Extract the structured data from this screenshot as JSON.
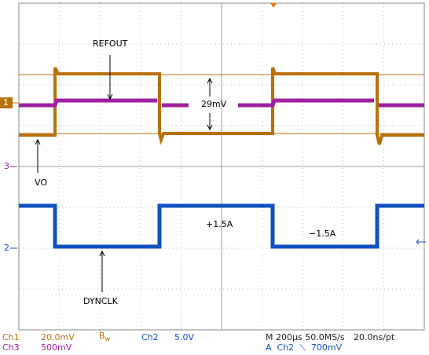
{
  "annotations": {
    "refout": "REFOUT",
    "delta": "29mV",
    "vo": "VO",
    "plus": "+1.5A",
    "minus": "−1.5A",
    "dynclk": "DYNCLK"
  },
  "markers": {
    "ch1": "1",
    "ch3": "3",
    "ch2": "2"
  },
  "status": {
    "row1": {
      "ch1": "Ch1",
      "ch1_scale": "20.0mV",
      "bw": "B",
      "bw_sub": "w",
      "ch2": "Ch2",
      "ch2_scale": "5.0V",
      "timebase": "M 200µs 50.0MS/s",
      "resolution": "20.0ns/pt"
    },
    "row2": {
      "ch3": "Ch3",
      "ch3_scale": "500mV",
      "trigger": "A  Ch2  ⟍  700mV"
    }
  }
}
